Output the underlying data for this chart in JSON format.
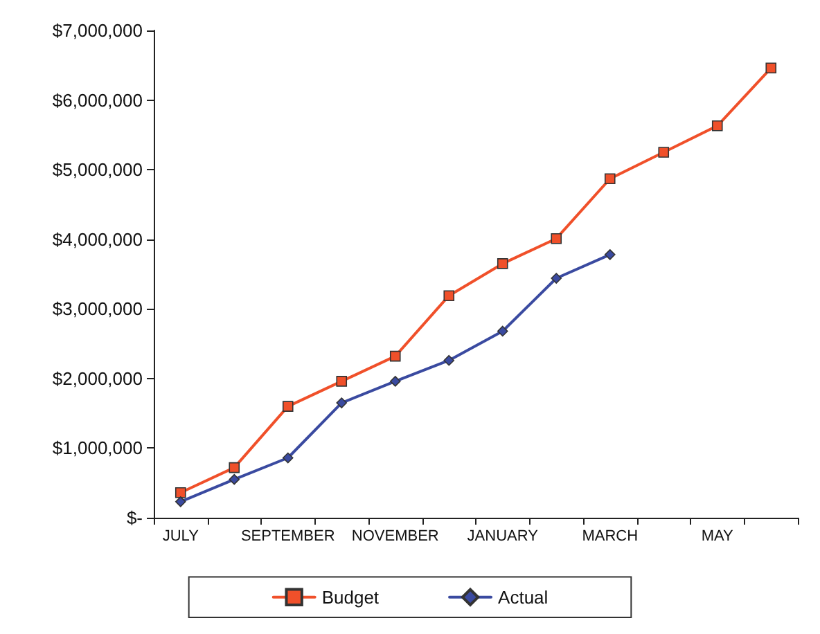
{
  "chart_data": {
    "type": "line",
    "categories": [
      "JULY",
      null,
      "SEPTEMBER",
      null,
      "NOVEMBER",
      null,
      "JANUARY",
      null,
      "MARCH",
      null,
      "MAY",
      null
    ],
    "series": [
      {
        "name": "Budget",
        "color": "#f0502a",
        "marker": "square",
        "values": [
          360000,
          720000,
          1600000,
          1960000,
          2320000,
          3190000,
          3650000,
          4010000,
          4870000,
          5250000,
          5630000,
          6460000
        ]
      },
      {
        "name": "Actual",
        "color": "#3a4aa0",
        "marker": "diamond",
        "values": [
          230000,
          550000,
          860000,
          1650000,
          1960000,
          2260000,
          2680000,
          3440000,
          3780000,
          null,
          null,
          null
        ]
      }
    ],
    "ylim": [
      0,
      7000000
    ],
    "yticks": [
      {
        "value": 0,
        "label": "$-"
      },
      {
        "value": 1000000,
        "label": "$1,000,000"
      },
      {
        "value": 2000000,
        "label": "$2,000,000"
      },
      {
        "value": 3000000,
        "label": "$3,000,000"
      },
      {
        "value": 4000000,
        "label": "$4,000,000"
      },
      {
        "value": 5000000,
        "label": "$5,000,000"
      },
      {
        "value": 6000000,
        "label": "$6,000,000"
      },
      {
        "value": 7000000,
        "label": "$7,000,000"
      }
    ],
    "grid": false,
    "legend": "bottom",
    "line_style": "solid"
  }
}
